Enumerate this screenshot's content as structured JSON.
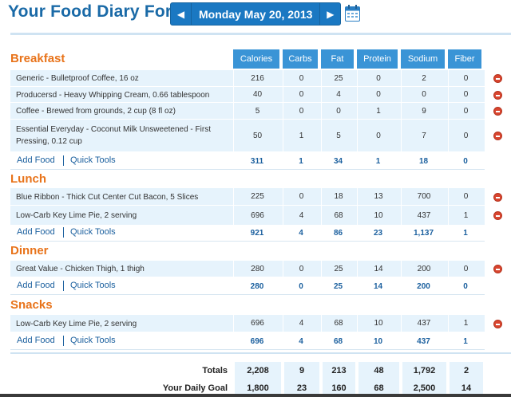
{
  "header": {
    "title": "Your Food Diary For:",
    "date": "Monday May 20, 2013",
    "prev_icon": "chevron-left-icon",
    "next_icon": "chevron-right-icon",
    "calendar_icon": "calendar-icon"
  },
  "columns": [
    "Calories",
    "Carbs",
    "Fat",
    "Protein",
    "Sodium",
    "Fiber"
  ],
  "links": {
    "add_food": "Add Food",
    "quick_tools": "Quick Tools"
  },
  "sections": [
    {
      "name": "Breakfast",
      "items": [
        {
          "food": "Generic - Bulletproof Coffee, 16 oz",
          "values": [
            "216",
            "0",
            "25",
            "0",
            "2",
            "0"
          ]
        },
        {
          "food": "Producersd - Heavy Whipping Cream, 0.66 tablespoon",
          "values": [
            "40",
            "0",
            "4",
            "0",
            "0",
            "0"
          ]
        },
        {
          "food": "Coffee - Brewed from grounds, 2 cup (8 fl oz)",
          "values": [
            "5",
            "0",
            "0",
            "1",
            "9",
            "0"
          ]
        },
        {
          "food": "Essential Everyday - Coconut Milk Unsweetened - First Pressing, 0.12 cup",
          "values": [
            "50",
            "1",
            "5",
            "0",
            "7",
            "0"
          ]
        }
      ],
      "totals": [
        "311",
        "1",
        "34",
        "1",
        "18",
        "0"
      ]
    },
    {
      "name": "Lunch",
      "items": [
        {
          "food": "Blue Ribbon - Thick Cut Center Cut Bacon, 5 Slices",
          "values": [
            "225",
            "0",
            "18",
            "13",
            "700",
            "0"
          ]
        },
        {
          "food": "Low-Carb Key Lime Pie, 2 serving",
          "values": [
            "696",
            "4",
            "68",
            "10",
            "437",
            "1"
          ]
        }
      ],
      "totals": [
        "921",
        "4",
        "86",
        "23",
        "1,137",
        "1"
      ]
    },
    {
      "name": "Dinner",
      "items": [
        {
          "food": "Great Value - Chicken Thigh, 1 thigh",
          "values": [
            "280",
            "0",
            "25",
            "14",
            "200",
            "0"
          ]
        }
      ],
      "totals": [
        "280",
        "0",
        "25",
        "14",
        "200",
        "0"
      ]
    },
    {
      "name": "Snacks",
      "items": [
        {
          "food": "Low-Carb Key Lime Pie, 2 serving",
          "values": [
            "696",
            "4",
            "68",
            "10",
            "437",
            "1"
          ]
        }
      ],
      "totals": [
        "696",
        "4",
        "68",
        "10",
        "437",
        "1"
      ]
    }
  ],
  "summary": [
    {
      "label": "Totals",
      "values": [
        "2,208",
        "9",
        "213",
        "48",
        "1,792",
        "2"
      ]
    },
    {
      "label": "Your Daily Goal",
      "values": [
        "1,800",
        "23",
        "160",
        "68",
        "2,500",
        "14"
      ]
    }
  ],
  "colors": {
    "title": "#1a6aa7",
    "section": "#e8731a",
    "header_bg": "#3a94d6",
    "row_bg": "#e6f3fc",
    "link": "#1a5f9e",
    "delete": "#d9452f"
  }
}
